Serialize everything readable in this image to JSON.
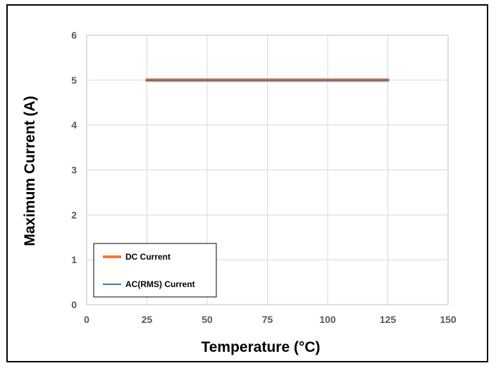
{
  "chart_data": {
    "type": "line",
    "xlabel": "Temperature (°C)",
    "ylabel": "Maximum Current (A)",
    "xlim": [
      0,
      150
    ],
    "ylim": [
      0,
      6
    ],
    "xticks": [
      0,
      25,
      50,
      75,
      100,
      125,
      150
    ],
    "yticks": [
      0,
      1,
      2,
      3,
      4,
      5,
      6
    ],
    "grid": true,
    "legend_position": "bottom-left",
    "series": [
      {
        "name": "DC Current",
        "color": "#ED7D31",
        "x": [
          25,
          125
        ],
        "y": [
          5,
          5
        ]
      },
      {
        "name": "AC(RMS) Current",
        "color": "#4472C4",
        "x": [
          25,
          125
        ],
        "y": [
          5,
          5
        ]
      }
    ]
  }
}
